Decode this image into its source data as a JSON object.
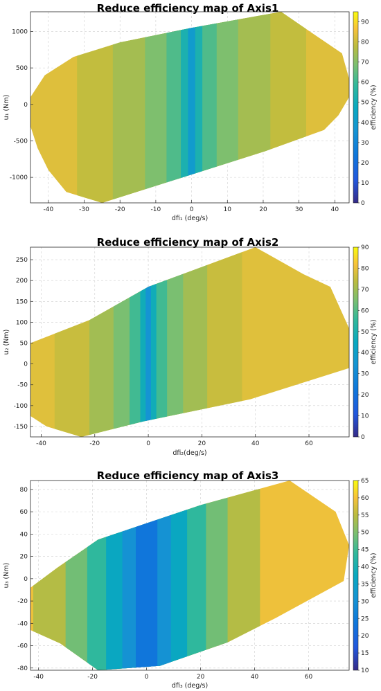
{
  "chart_data": [
    {
      "type": "heatmap",
      "title": "Reduce efficiency map of Axis1",
      "xlabel": "dfi₁ (deg/s)",
      "ylabel": "u₁ (Nm)",
      "colorbar_label": "efficiency (%)",
      "xlim": [
        -45,
        44
      ],
      "ylim": [
        -1350,
        1270
      ],
      "xticks": [
        -40,
        -30,
        -20,
        -10,
        0,
        10,
        20,
        30,
        40
      ],
      "yticks": [
        -1000,
        -500,
        0,
        500,
        1000
      ],
      "clim": [
        0,
        95
      ],
      "cticks": [
        0,
        10,
        20,
        30,
        40,
        50,
        60,
        70,
        80,
        90
      ],
      "grid": true,
      "region_boundary": [
        [
          -45,
          -300
        ],
        [
          -43,
          -600
        ],
        [
          -40,
          -900
        ],
        [
          -35,
          -1200
        ],
        [
          -25,
          -1350
        ],
        [
          20,
          -650
        ],
        [
          37,
          -350
        ],
        [
          41,
          -150
        ],
        [
          44,
          100
        ],
        [
          44,
          350
        ],
        [
          42,
          700
        ],
        [
          33,
          1000
        ],
        [
          25,
          1270
        ],
        [
          0,
          1050
        ],
        [
          -20,
          850
        ],
        [
          -33,
          650
        ],
        [
          -41,
          400
        ],
        [
          -45,
          100
        ]
      ],
      "efficiency_bands": [
        {
          "dfi_max": 1,
          "efficiency": 35
        },
        {
          "dfi_max": 3,
          "efficiency": 47
        },
        {
          "dfi_max": 7,
          "efficiency": 57
        },
        {
          "dfi_max": 13,
          "efficiency": 64
        },
        {
          "dfi_max": 22,
          "efficiency": 70
        },
        {
          "dfi_max": 32,
          "efficiency": 75
        },
        {
          "dfi_max": 100,
          "efficiency": 80
        }
      ]
    },
    {
      "type": "heatmap",
      "title": "Reduce efficiency map of Axis2",
      "xlabel": "dfi₂(deg/s)",
      "ylabel": "u₂ (Nm)",
      "colorbar_label": "efficiency (%)",
      "xlim": [
        -44,
        75
      ],
      "ylim": [
        -175,
        280
      ],
      "xticks": [
        -40,
        -20,
        0,
        20,
        40,
        60
      ],
      "yticks": [
        -150,
        -100,
        -50,
        0,
        50,
        100,
        150,
        200,
        250
      ],
      "clim": [
        0,
        90
      ],
      "cticks": [
        0,
        10,
        20,
        30,
        40,
        50,
        60,
        70,
        80,
        90
      ],
      "grid": true,
      "region_boundary": [
        [
          -44,
          50
        ],
        [
          -44,
          -125
        ],
        [
          -38,
          -150
        ],
        [
          -25,
          -175
        ],
        [
          -2,
          -138
        ],
        [
          38,
          -85
        ],
        [
          75,
          -10
        ],
        [
          75,
          85
        ],
        [
          68,
          185
        ],
        [
          58,
          215
        ],
        [
          40,
          280
        ],
        [
          0,
          185
        ],
        [
          -22,
          105
        ]
      ],
      "efficiency_bands": [
        {
          "dfi_max": 1,
          "efficiency": 30
        },
        {
          "dfi_max": 3,
          "efficiency": 42
        },
        {
          "dfi_max": 7,
          "efficiency": 52
        },
        {
          "dfi_max": 13,
          "efficiency": 60
        },
        {
          "dfi_max": 22,
          "efficiency": 66
        },
        {
          "dfi_max": 35,
          "efficiency": 72
        },
        {
          "dfi_max": 200,
          "efficiency": 76
        }
      ]
    },
    {
      "type": "heatmap",
      "title": "Reduce efficiency map of Axis3",
      "xlabel": "dfi₃ (deg/s)",
      "ylabel": "u₃ (Nm)",
      "colorbar_label": "efficiency (%)",
      "xlim": [
        -43,
        75
      ],
      "ylim": [
        -82,
        88
      ],
      "xticks": [
        -40,
        -20,
        0,
        20,
        40,
        60
      ],
      "yticks": [
        -80,
        -60,
        -40,
        -20,
        0,
        20,
        40,
        60,
        80
      ],
      "clim": [
        10,
        65
      ],
      "cticks": [
        10,
        15,
        20,
        25,
        30,
        35,
        40,
        45,
        50,
        55,
        60,
        65
      ],
      "grid": true,
      "region_boundary": [
        [
          -43,
          -8
        ],
        [
          -43,
          -46
        ],
        [
          -32,
          -58
        ],
        [
          -18,
          -82
        ],
        [
          5,
          -78
        ],
        [
          30,
          -57
        ],
        [
          48,
          -35
        ],
        [
          73,
          -2
        ],
        [
          75,
          30
        ],
        [
          70,
          60
        ],
        [
          53,
          88
        ],
        [
          20,
          66
        ],
        [
          -18,
          35
        ],
        [
          -33,
          10
        ]
      ],
      "efficiency_bands": [
        {
          "dfi_max": 4,
          "efficiency": 22
        },
        {
          "dfi_max": 9,
          "efficiency": 28
        },
        {
          "dfi_max": 15,
          "efficiency": 34
        },
        {
          "dfi_max": 22,
          "efficiency": 40
        },
        {
          "dfi_max": 30,
          "efficiency": 46
        },
        {
          "dfi_max": 42,
          "efficiency": 52
        },
        {
          "dfi_max": 200,
          "efficiency": 58
        }
      ]
    }
  ]
}
